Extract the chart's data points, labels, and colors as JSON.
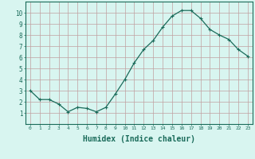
{
  "x": [
    0,
    1,
    2,
    3,
    4,
    5,
    6,
    7,
    8,
    9,
    10,
    11,
    12,
    13,
    14,
    15,
    16,
    17,
    18,
    19,
    20,
    21,
    22,
    23
  ],
  "y": [
    3.0,
    2.2,
    2.2,
    1.8,
    1.1,
    1.5,
    1.4,
    1.1,
    1.5,
    2.7,
    4.0,
    5.5,
    6.7,
    7.5,
    8.7,
    9.7,
    10.2,
    10.2,
    9.5,
    8.5,
    8.0,
    7.6,
    6.7,
    6.1
  ],
  "line_color": "#1a6b5a",
  "marker": "+",
  "marker_size": 3,
  "bg_color": "#d8f5f0",
  "grid_color": "#c0a0a0",
  "axis_label_color": "#1a6b5a",
  "tick_label_color": "#1a6b5a",
  "xlabel": "Humidex (Indice chaleur)",
  "xlabel_fontsize": 7,
  "ylim": [
    0,
    11
  ],
  "xlim": [
    -0.5,
    23.5
  ],
  "yticks": [
    1,
    2,
    3,
    4,
    5,
    6,
    7,
    8,
    9,
    10
  ],
  "xticks": [
    0,
    1,
    2,
    3,
    4,
    5,
    6,
    7,
    8,
    9,
    10,
    11,
    12,
    13,
    14,
    15,
    16,
    17,
    18,
    19,
    20,
    21,
    22,
    23
  ]
}
